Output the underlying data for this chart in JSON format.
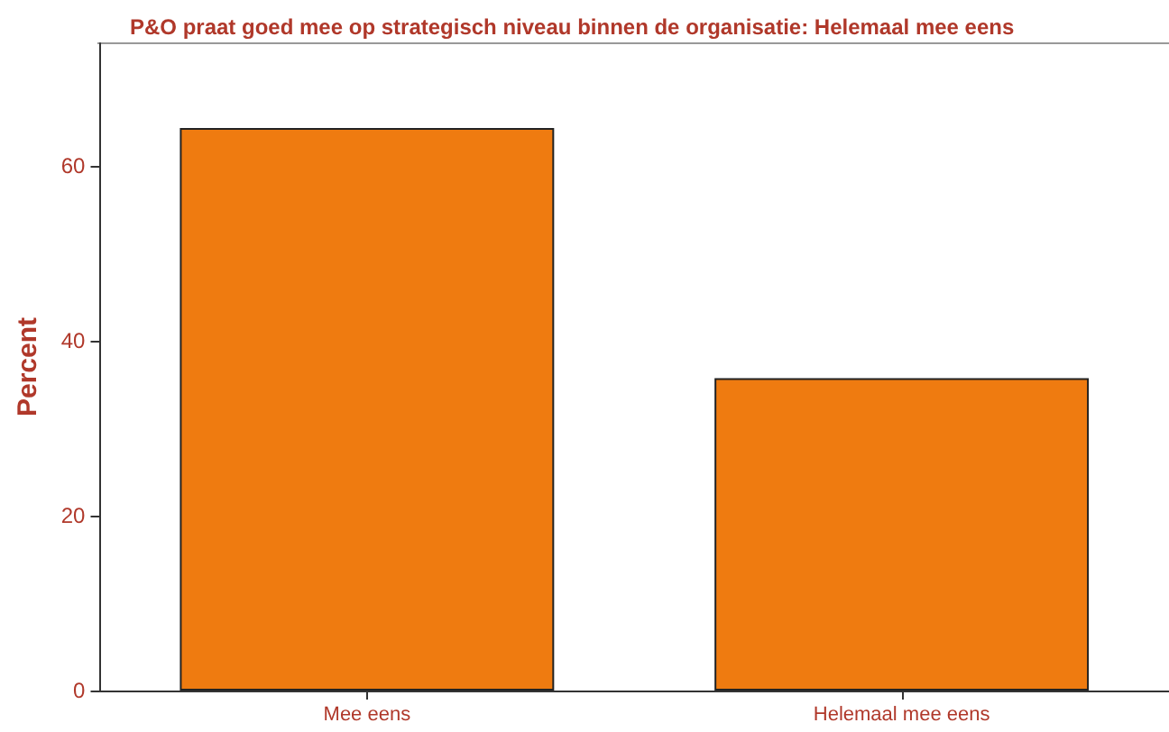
{
  "chart_data": {
    "type": "bar",
    "title": "P&O praat goed mee op strategisch niveau binnen de organisatie: Helemaal mee eens",
    "ylabel": "Percent",
    "categories": [
      "Mee eens",
      "Helemaal mee eens"
    ],
    "values": [
      64.3,
      35.7
    ],
    "color": "#ef7b10",
    "ylim": [
      0,
      74
    ],
    "yticks": [
      0,
      20,
      40,
      60
    ],
    "grid": false
  }
}
